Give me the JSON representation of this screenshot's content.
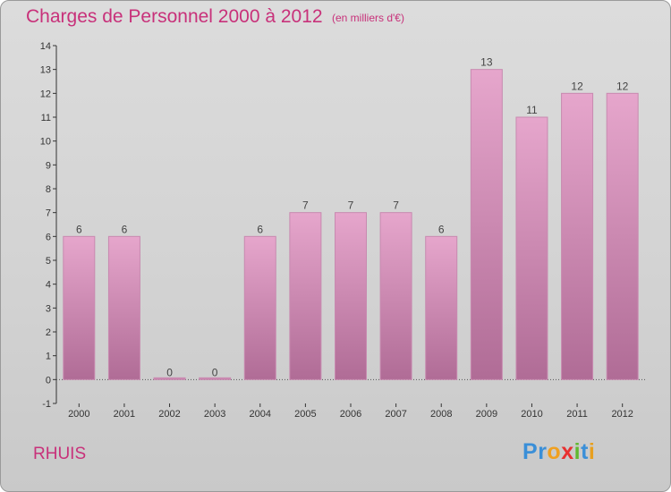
{
  "chart_data": {
    "type": "bar",
    "title": "Charges de Personnel 2000 à 2012",
    "subtitle": "(en milliers d'€)",
    "categories": [
      "2000",
      "2001",
      "2002",
      "2003",
      "2004",
      "2005",
      "2006",
      "2007",
      "2008",
      "2009",
      "2010",
      "2011",
      "2012"
    ],
    "values": [
      6,
      6,
      0,
      0,
      6,
      7,
      7,
      7,
      6,
      13,
      11,
      12,
      12
    ],
    "ylim": [
      -1,
      14
    ],
    "yticks": [
      -1,
      0,
      1,
      2,
      3,
      4,
      5,
      6,
      7,
      8,
      9,
      10,
      11,
      12,
      13,
      14
    ],
    "xlabel": "",
    "ylabel": "",
    "grid": false,
    "bar_color_top": "#e6a6cc",
    "bar_color_bottom": "#b06c96"
  },
  "commune": "RHUIS",
  "logo": {
    "letters": [
      "P",
      "r",
      "o",
      "x",
      "i",
      "t",
      "i"
    ],
    "colors": [
      "#3a8fd8",
      "#3a8fd8",
      "#f0a020",
      "#e83030",
      "#60b830",
      "#3a8fd8",
      "#e8a020"
    ]
  }
}
